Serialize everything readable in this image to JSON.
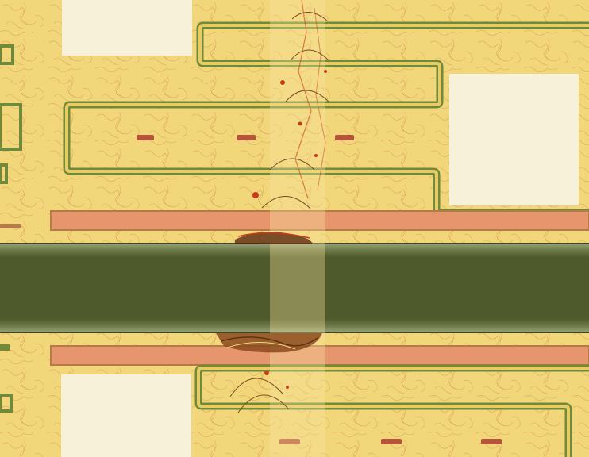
{
  "image": {
    "subject": "micrograph",
    "colors": {
      "substrate": "#f2d67a",
      "substrate_light": "#f7e6a0",
      "grain_line": "#c9874a",
      "trace_fill": "#e4c35a",
      "trace_edge": "#6f8a3a",
      "pad": "#f6f1d8",
      "strip_fill": "#e7956d",
      "strip_edge": "#b47a48",
      "channel_dark": "#4f5a2c",
      "channel_light": "#9aa680",
      "damage": "#c83a1a",
      "damage_dark": "#5a2a10"
    }
  }
}
